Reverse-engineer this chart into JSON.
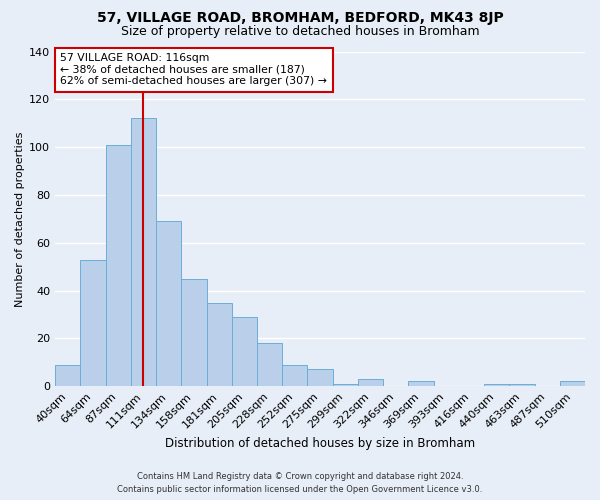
{
  "title": "57, VILLAGE ROAD, BROMHAM, BEDFORD, MK43 8JP",
  "subtitle": "Size of property relative to detached houses in Bromham",
  "xlabel": "Distribution of detached houses by size in Bromham",
  "ylabel": "Number of detached properties",
  "bar_labels": [
    "40sqm",
    "64sqm",
    "87sqm",
    "111sqm",
    "134sqm",
    "158sqm",
    "181sqm",
    "205sqm",
    "228sqm",
    "252sqm",
    "275sqm",
    "299sqm",
    "322sqm",
    "346sqm",
    "369sqm",
    "393sqm",
    "416sqm",
    "440sqm",
    "463sqm",
    "487sqm",
    "510sqm"
  ],
  "bar_values": [
    9,
    53,
    101,
    112,
    69,
    45,
    35,
    29,
    18,
    9,
    7,
    1,
    3,
    0,
    2,
    0,
    0,
    1,
    1,
    0,
    2
  ],
  "bar_color": "#bad0ea",
  "bar_edge_color": "#6aaed6",
  "vline_color": "#cc0000",
  "vline_x_bar_index": 3,
  "annotation_text": "57 VILLAGE ROAD: 116sqm\n← 38% of detached houses are smaller (187)\n62% of semi-detached houses are larger (307) →",
  "annotation_box_facecolor": "white",
  "annotation_box_edgecolor": "#cc0000",
  "ylim": [
    0,
    140
  ],
  "yticks": [
    0,
    20,
    40,
    60,
    80,
    100,
    120,
    140
  ],
  "footer_line1": "Contains HM Land Registry data © Crown copyright and database right 2024.",
  "footer_line2": "Contains public sector information licensed under the Open Government Licence v3.0.",
  "bg_color": "#e8eef7",
  "grid_color": "white",
  "title_fontsize": 10,
  "subtitle_fontsize": 9,
  "xlabel_fontsize": 8.5,
  "ylabel_fontsize": 8,
  "tick_fontsize": 8,
  "annot_fontsize": 7.8,
  "footer_fontsize": 6.0
}
